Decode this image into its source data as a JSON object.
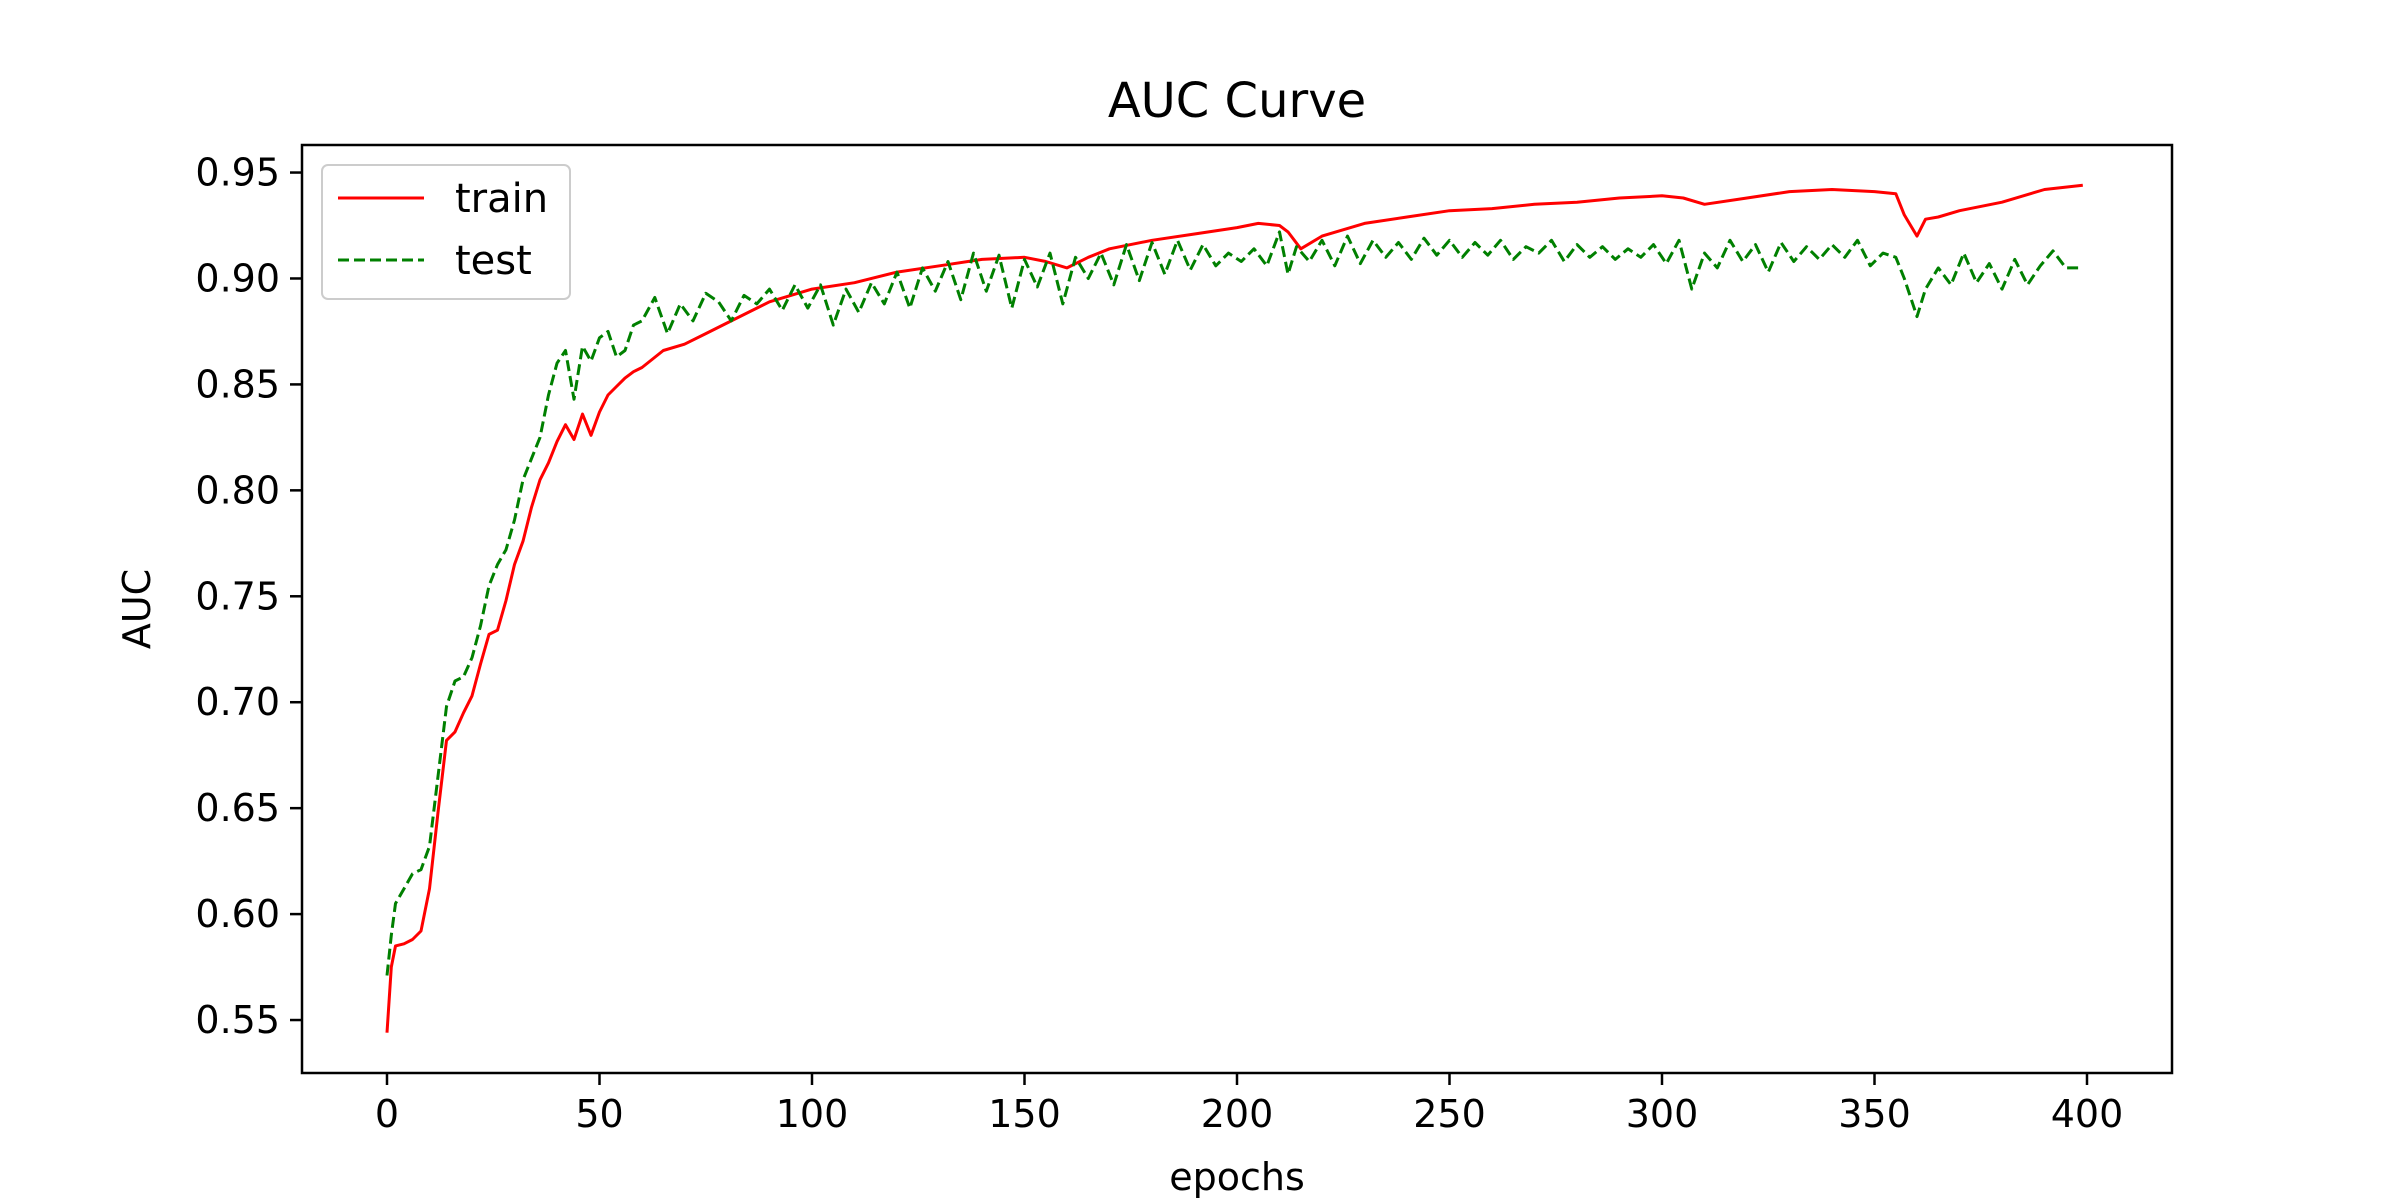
{
  "chart_data": {
    "type": "line",
    "title": "AUC Curve",
    "xlabel": "epochs",
    "ylabel": "AUC",
    "xlim": [
      -20,
      420
    ],
    "ylim": [
      0.525,
      0.963
    ],
    "xticks": [
      0,
      50,
      100,
      150,
      200,
      250,
      300,
      350,
      400
    ],
    "yticks": [
      0.55,
      0.6,
      0.65,
      0.7,
      0.75,
      0.8,
      0.85,
      0.9,
      0.95
    ],
    "xtick_labels": [
      "0",
      "50",
      "100",
      "150",
      "200",
      "250",
      "300",
      "350",
      "400"
    ],
    "ytick_labels": [
      "0.55",
      "0.60",
      "0.65",
      "0.70",
      "0.75",
      "0.80",
      "0.85",
      "0.90",
      "0.95"
    ],
    "grid": false,
    "legend_position": "top-left",
    "series": [
      {
        "name": "train",
        "color": "#ff0000",
        "linestyle": "solid",
        "x": [
          0,
          1,
          2,
          4,
          6,
          8,
          10,
          12,
          14,
          16,
          18,
          20,
          22,
          24,
          26,
          28,
          30,
          32,
          34,
          36,
          38,
          40,
          42,
          44,
          46,
          48,
          50,
          52,
          54,
          56,
          58,
          60,
          65,
          70,
          75,
          80,
          85,
          90,
          95,
          100,
          110,
          120,
          130,
          140,
          150,
          155,
          160,
          165,
          170,
          180,
          190,
          200,
          205,
          210,
          212,
          215,
          220,
          230,
          240,
          250,
          260,
          270,
          280,
          290,
          300,
          305,
          310,
          320,
          330,
          340,
          350,
          355,
          357,
          360,
          362,
          365,
          370,
          380,
          390,
          399
        ],
        "y": [
          0.544,
          0.575,
          0.585,
          0.586,
          0.588,
          0.592,
          0.612,
          0.648,
          0.682,
          0.686,
          0.695,
          0.703,
          0.718,
          0.732,
          0.734,
          0.748,
          0.765,
          0.776,
          0.792,
          0.805,
          0.813,
          0.823,
          0.831,
          0.824,
          0.836,
          0.826,
          0.837,
          0.845,
          0.849,
          0.853,
          0.856,
          0.858,
          0.866,
          0.869,
          0.874,
          0.879,
          0.884,
          0.889,
          0.892,
          0.895,
          0.898,
          0.903,
          0.906,
          0.909,
          0.91,
          0.908,
          0.905,
          0.91,
          0.914,
          0.918,
          0.921,
          0.924,
          0.926,
          0.925,
          0.922,
          0.914,
          0.92,
          0.926,
          0.929,
          0.932,
          0.933,
          0.935,
          0.936,
          0.938,
          0.939,
          0.938,
          0.935,
          0.938,
          0.941,
          0.942,
          0.941,
          0.94,
          0.93,
          0.92,
          0.928,
          0.929,
          0.932,
          0.936,
          0.942,
          0.944
        ]
      },
      {
        "name": "test",
        "color": "#008000",
        "linestyle": "dashed",
        "x": [
          0,
          1,
          2,
          4,
          6,
          8,
          10,
          12,
          14,
          16,
          18,
          20,
          22,
          24,
          26,
          28,
          30,
          32,
          34,
          36,
          38,
          40,
          42,
          44,
          46,
          48,
          50,
          52,
          54,
          56,
          58,
          60,
          63,
          66,
          69,
          72,
          75,
          78,
          81,
          84,
          87,
          90,
          93,
          96,
          99,
          102,
          105,
          108,
          111,
          114,
          117,
          120,
          123,
          126,
          129,
          132,
          135,
          138,
          141,
          144,
          147,
          150,
          153,
          156,
          159,
          162,
          165,
          168,
          171,
          174,
          177,
          180,
          183,
          186,
          189,
          192,
          195,
          198,
          201,
          204,
          207,
          210,
          212,
          214,
          217,
          220,
          223,
          226,
          229,
          232,
          235,
          238,
          241,
          244,
          247,
          250,
          253,
          256,
          259,
          262,
          265,
          268,
          271,
          274,
          277,
          280,
          283,
          286,
          289,
          292,
          295,
          298,
          301,
          304,
          307,
          310,
          313,
          316,
          319,
          322,
          325,
          328,
          331,
          334,
          337,
          340,
          343,
          346,
          349,
          352,
          355,
          357,
          360,
          362,
          365,
          368,
          371,
          374,
          377,
          380,
          383,
          386,
          389,
          392,
          395,
          399
        ],
        "y": [
          0.571,
          0.59,
          0.605,
          0.612,
          0.619,
          0.621,
          0.632,
          0.665,
          0.698,
          0.71,
          0.712,
          0.721,
          0.736,
          0.755,
          0.765,
          0.772,
          0.786,
          0.805,
          0.815,
          0.825,
          0.845,
          0.86,
          0.866,
          0.843,
          0.868,
          0.861,
          0.872,
          0.875,
          0.863,
          0.866,
          0.878,
          0.88,
          0.891,
          0.874,
          0.888,
          0.88,
          0.893,
          0.889,
          0.88,
          0.892,
          0.888,
          0.895,
          0.885,
          0.897,
          0.886,
          0.897,
          0.878,
          0.895,
          0.884,
          0.898,
          0.888,
          0.903,
          0.886,
          0.905,
          0.894,
          0.908,
          0.89,
          0.912,
          0.894,
          0.911,
          0.886,
          0.909,
          0.896,
          0.912,
          0.888,
          0.91,
          0.9,
          0.912,
          0.897,
          0.916,
          0.899,
          0.917,
          0.902,
          0.918,
          0.904,
          0.916,
          0.906,
          0.912,
          0.908,
          0.914,
          0.906,
          0.922,
          0.902,
          0.915,
          0.908,
          0.918,
          0.906,
          0.92,
          0.907,
          0.918,
          0.91,
          0.917,
          0.909,
          0.919,
          0.911,
          0.918,
          0.91,
          0.917,
          0.911,
          0.918,
          0.909,
          0.915,
          0.912,
          0.918,
          0.908,
          0.916,
          0.91,
          0.915,
          0.909,
          0.914,
          0.91,
          0.916,
          0.907,
          0.918,
          0.895,
          0.912,
          0.905,
          0.918,
          0.908,
          0.916,
          0.903,
          0.917,
          0.908,
          0.915,
          0.909,
          0.916,
          0.91,
          0.918,
          0.906,
          0.912,
          0.91,
          0.9,
          0.882,
          0.895,
          0.905,
          0.897,
          0.912,
          0.898,
          0.907,
          0.895,
          0.909,
          0.897,
          0.906,
          0.913,
          0.905,
          0.905
        ]
      }
    ]
  }
}
